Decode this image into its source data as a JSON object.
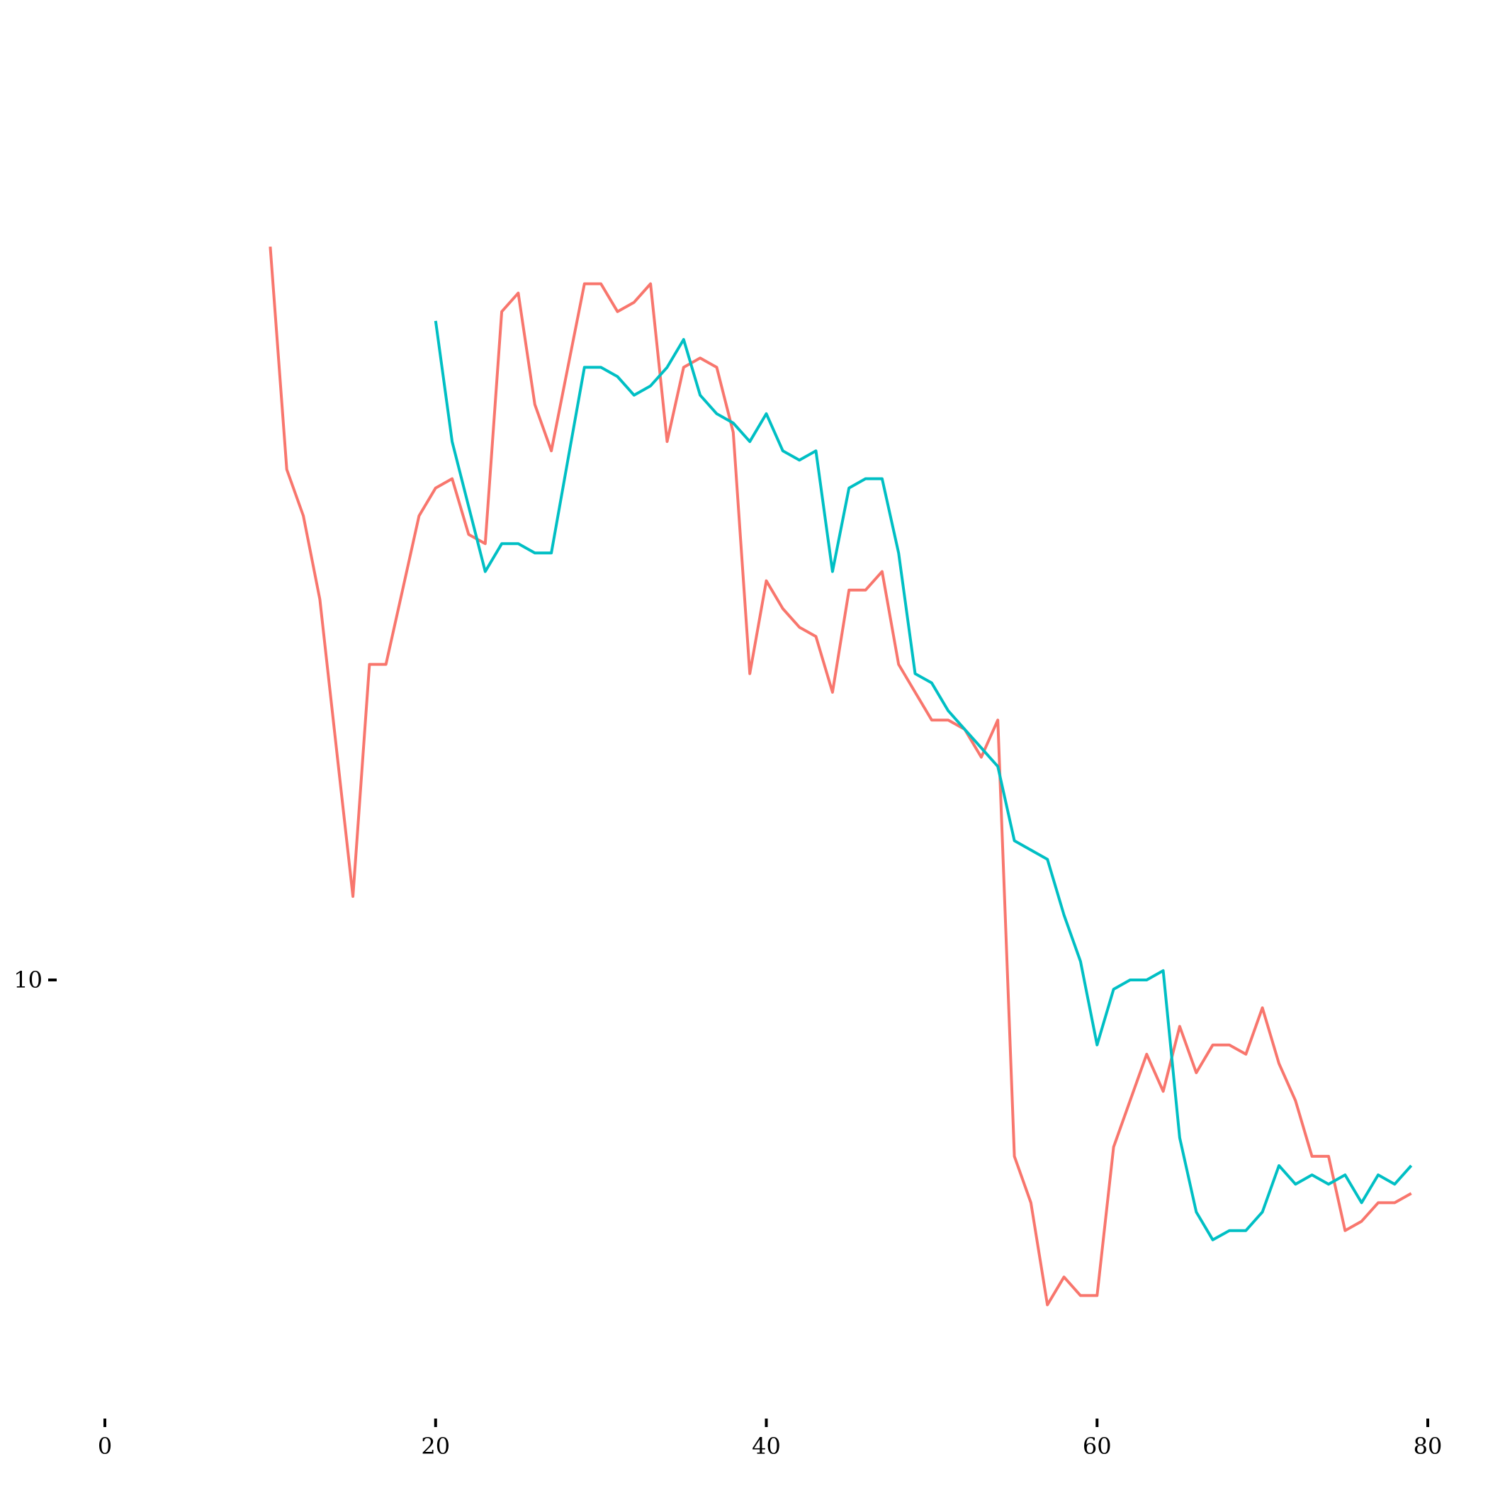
{
  "chart_data": {
    "type": "line",
    "title": "",
    "xlabel": "",
    "ylabel": "",
    "xlim": [
      0,
      80
    ],
    "x_ticks": [
      0,
      20,
      40,
      60,
      80
    ],
    "y_ticks": [
      10
    ],
    "grid": false,
    "legend": "none",
    "colors": {
      "series_a": "#F8766D",
      "series_b": "#00BFC4"
    },
    "series": [
      {
        "color": "#F8766D",
        "x": [
          10,
          11,
          12,
          13,
          14,
          15,
          16,
          17,
          18,
          19,
          20,
          21,
          22,
          23,
          24,
          25,
          26,
          27,
          28,
          29,
          30,
          31,
          32,
          33,
          34,
          35,
          36,
          37,
          38,
          39,
          40,
          41,
          42,
          43,
          44,
          45,
          46,
          47,
          48,
          49,
          50,
          51,
          52,
          53,
          54,
          55,
          56,
          57,
          58,
          59,
          60,
          61,
          62,
          63,
          64,
          65,
          66,
          67,
          68,
          69,
          70,
          71,
          72,
          73,
          74,
          75,
          76,
          77,
          78,
          79
        ],
        "values": [
          17.9,
          15.5,
          15.0,
          14.1,
          12.5,
          10.9,
          13.4,
          13.4,
          14.2,
          15.0,
          15.3,
          15.4,
          14.8,
          14.7,
          17.2,
          17.4,
          16.2,
          15.7,
          16.6,
          17.5,
          17.5,
          17.2,
          17.3,
          17.5,
          15.8,
          16.6,
          16.7,
          16.6,
          15.9,
          13.3,
          14.3,
          14.0,
          13.8,
          13.7,
          13.1,
          14.2,
          14.2,
          14.4,
          13.4,
          13.1,
          12.8,
          12.8,
          12.7,
          12.4,
          12.8,
          8.1,
          7.6,
          6.5,
          6.8,
          6.6,
          6.6,
          8.2,
          8.7,
          9.2,
          8.8,
          9.5,
          9.0,
          9.3,
          9.3,
          9.2,
          9.7,
          9.1,
          8.7,
          8.1,
          8.1,
          7.3,
          7.4,
          7.6,
          7.6,
          7.7
        ]
      },
      {
        "color": "#00BFC4",
        "x": [
          20,
          21,
          22,
          23,
          24,
          25,
          26,
          27,
          28,
          29,
          30,
          31,
          32,
          33,
          34,
          35,
          36,
          37,
          38,
          39,
          40,
          41,
          42,
          43,
          44,
          45,
          46,
          47,
          48,
          49,
          50,
          51,
          52,
          53,
          54,
          55,
          56,
          57,
          58,
          59,
          60,
          61,
          62,
          63,
          64,
          65,
          66,
          67,
          68,
          69,
          70,
          71,
          72,
          73,
          74,
          75,
          76,
          77,
          78,
          79
        ],
        "values": [
          17.1,
          15.8,
          15.1,
          14.4,
          14.7,
          14.7,
          14.6,
          14.6,
          15.6,
          16.6,
          16.6,
          16.5,
          16.3,
          16.4,
          16.6,
          16.9,
          16.3,
          16.1,
          16.0,
          15.8,
          16.1,
          15.7,
          15.6,
          15.7,
          14.4,
          15.3,
          15.4,
          15.4,
          14.6,
          13.3,
          13.2,
          12.9,
          12.7,
          12.5,
          12.3,
          11.5,
          11.4,
          11.3,
          10.7,
          10.2,
          9.3,
          9.9,
          10.0,
          10.0,
          10.1,
          8.3,
          7.5,
          7.2,
          7.3,
          7.3,
          7.5,
          8.0,
          7.8,
          7.9,
          7.8,
          7.9,
          7.6,
          7.9,
          7.8,
          8.0
        ]
      }
    ]
  }
}
